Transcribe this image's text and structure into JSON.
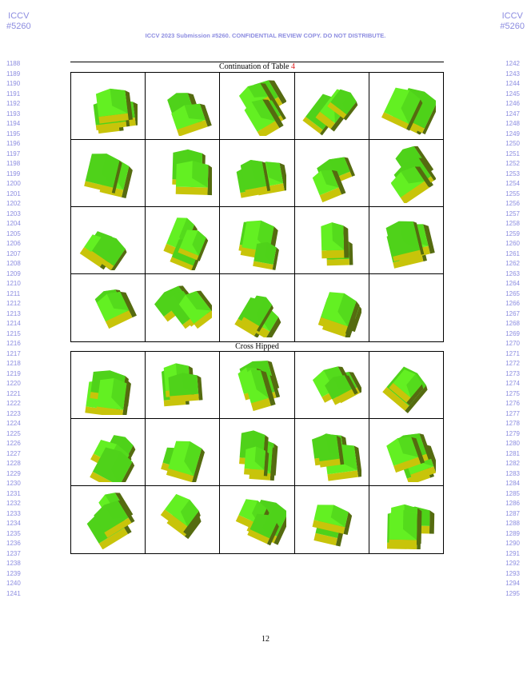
{
  "corner_left": [
    "ICCV",
    "#5260"
  ],
  "corner_right": [
    "ICCV",
    "#5260"
  ],
  "header": "ICCV 2023 Submission #5260. CONFIDENTIAL REVIEW COPY. DO NOT DISTRIBUTE.",
  "line_numbers_left_start": 1188,
  "line_numbers_left_end": 1241,
  "line_numbers_right_start": 1242,
  "line_numbers_right_end": 1295,
  "table": {
    "caption_text": "Continuation of Table ",
    "caption_ref": "4",
    "section_title": "Cross Hipped",
    "group1_count": 19,
    "group1_rows": 4,
    "group2_count": 15,
    "group2_rows": 3,
    "colors": {
      "roof": "#4fd21a",
      "roof_light": "#63f022",
      "wall": "#c8c40a",
      "shadow": "#556b10"
    }
  },
  "page_number": "12"
}
